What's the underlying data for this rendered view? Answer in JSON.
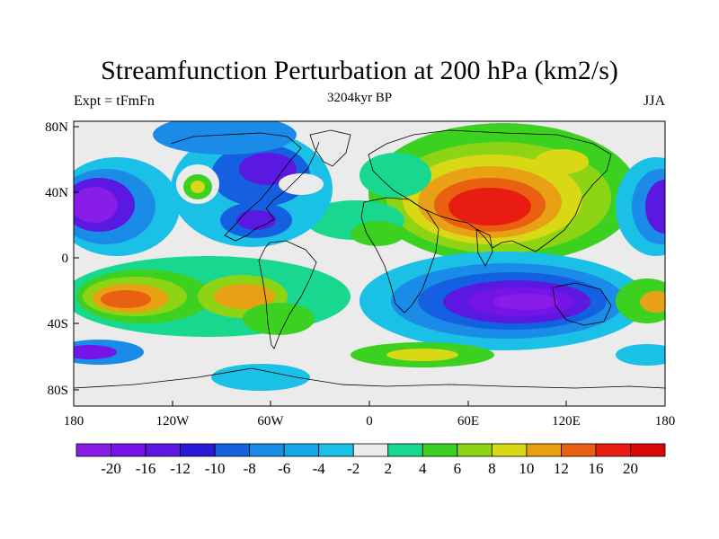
{
  "map": {
    "title": "Streamfunction Perturbation at 200 hPa (km2/s)",
    "left_label": "Expt = tFmFn",
    "center_label": "3204kyr BP",
    "right_label": "JJA",
    "lat_ticks": [
      "80N",
      "40N",
      "0",
      "40S",
      "80S"
    ],
    "lon_ticks": [
      "180",
      "120W",
      "60W",
      "0",
      "60E",
      "120E",
      "180"
    ]
  },
  "colorbar": {
    "labels": [
      "-20",
      "-16",
      "-12",
      "-10",
      "-8",
      "-6",
      "-4",
      "-2",
      "2",
      "4",
      "6",
      "8",
      "10",
      "12",
      "16",
      "20"
    ],
    "colors": [
      "#8a1ce8",
      "#7514e6",
      "#5a18e0",
      "#2a18d8",
      "#1460e0",
      "#1a8ce8",
      "#14a8e8",
      "#1ac0e6",
      "#ebebeb",
      "#18d890",
      "#3cd020",
      "#8cd414",
      "#d8d814",
      "#e8a014",
      "#e86010",
      "#e81c10",
      "#d80808"
    ]
  }
}
